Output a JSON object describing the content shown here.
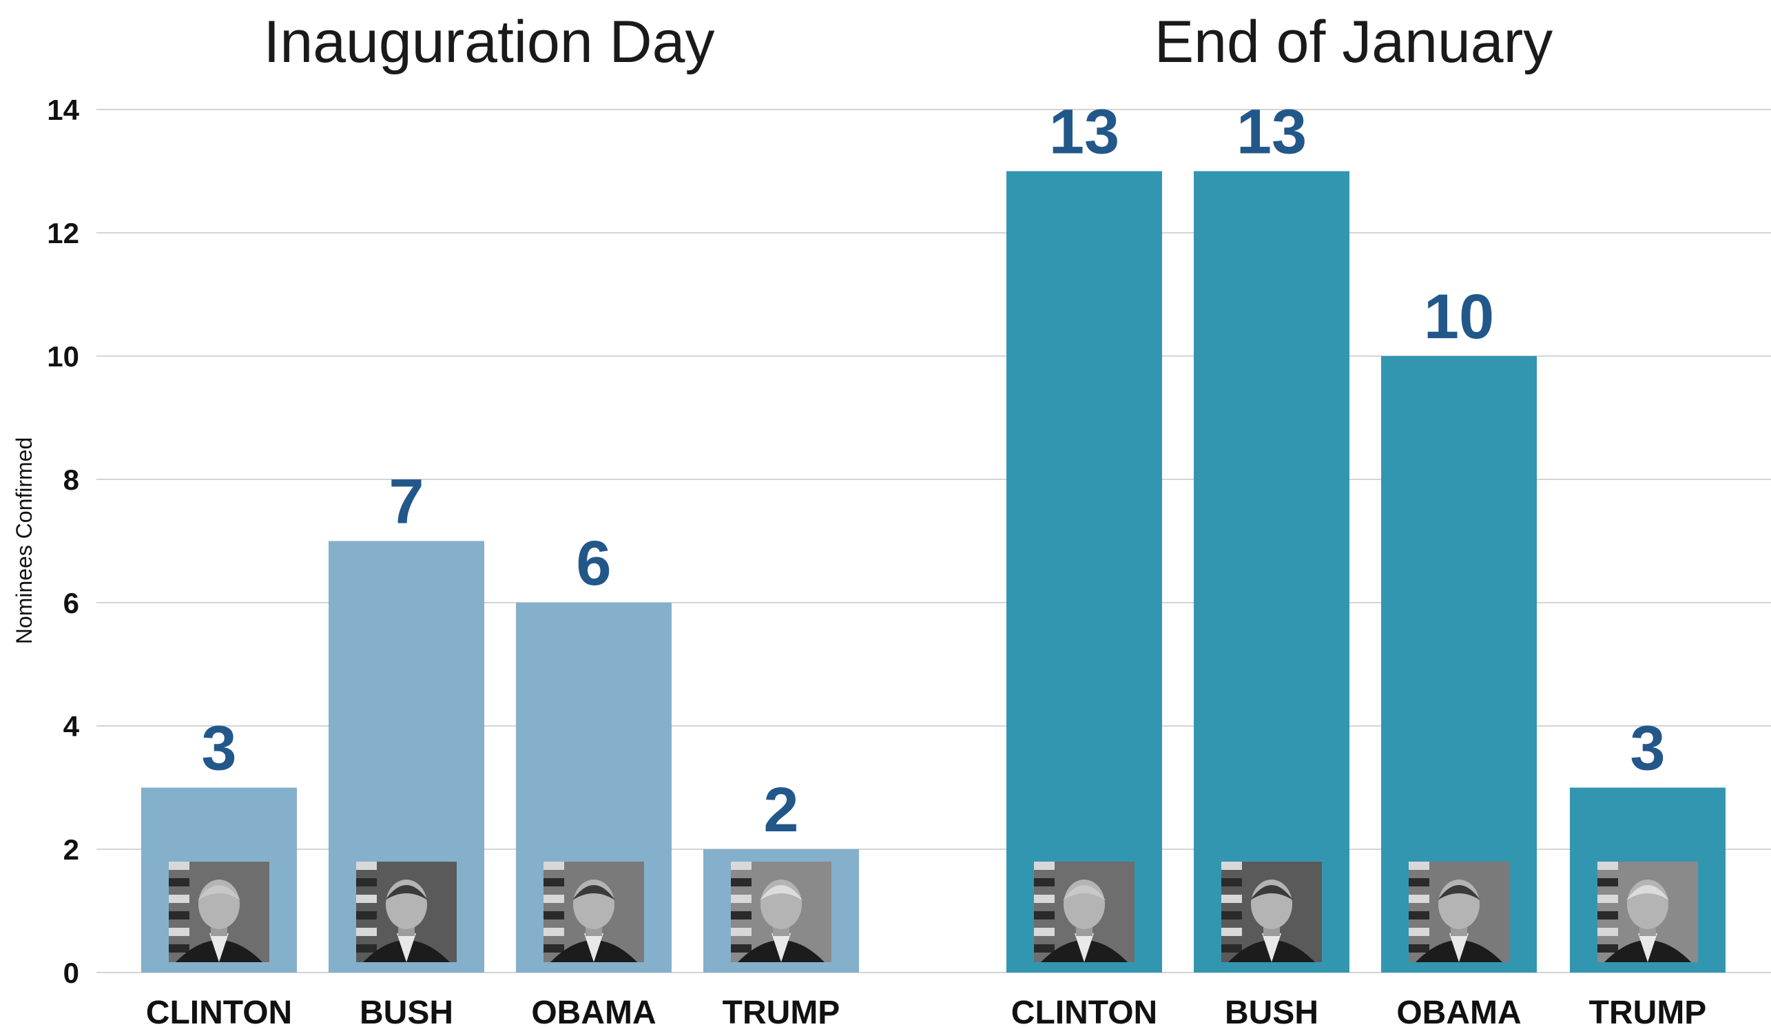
{
  "chart_data": {
    "type": "bar",
    "ylabel": "Nominees Confirmed",
    "ylim": [
      0,
      14
    ],
    "yticks": [
      0,
      2,
      4,
      6,
      8,
      10,
      12,
      14
    ],
    "grid": true,
    "data_labels": true,
    "panels": [
      {
        "title": "Inauguration Day",
        "color": "#84b0cb",
        "categories": [
          "CLINTON",
          "BUSH",
          "OBAMA",
          "TRUMP"
        ],
        "values": [
          3,
          7,
          6,
          2
        ]
      },
      {
        "title": "End of January",
        "color": "#3396b0",
        "categories": [
          "CLINTON",
          "BUSH",
          "OBAMA",
          "TRUMP"
        ],
        "values": [
          13,
          13,
          10,
          3
        ]
      }
    ],
    "portrait_icons": [
      "clinton-portrait-icon",
      "bush-portrait-icon",
      "obama-portrait-icon",
      "trump-portrait-icon"
    ],
    "value_label_color": "#22578a"
  }
}
